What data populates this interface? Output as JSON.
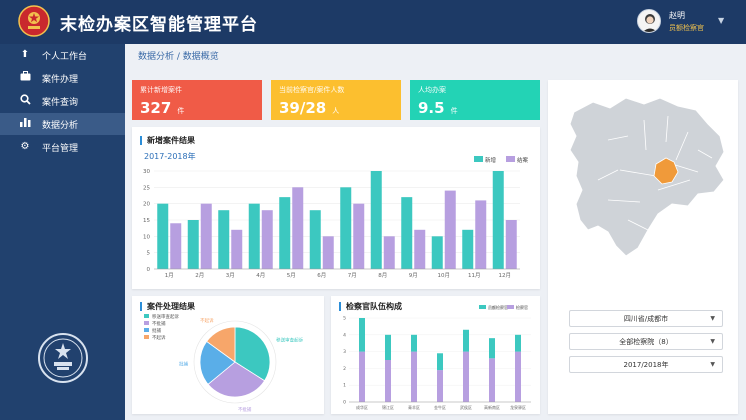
{
  "app": {
    "title": "末检办案区智能管理平台"
  },
  "user": {
    "name": "赵明",
    "role": "员额检察官"
  },
  "sidebar": {
    "items": [
      {
        "label": "个人工作台",
        "icon": "upload-icon"
      },
      {
        "label": "案件办理",
        "icon": "briefcase-icon"
      },
      {
        "label": "案件查询",
        "icon": "search-icon"
      },
      {
        "label": "数据分析",
        "icon": "bar-chart-icon",
        "active": true
      },
      {
        "label": "平台管理",
        "icon": "gear-icon"
      }
    ]
  },
  "breadcrumb": "数据分析 / 数据概览",
  "kpis": [
    {
      "label": "累计新增案件",
      "value": "327",
      "unit": "件",
      "color": "#f05b47"
    },
    {
      "label": "当前检察官/案件人数",
      "value": "39/28",
      "unit": "人",
      "color": "#fcbf2f"
    },
    {
      "label": "人均办案",
      "value": "9.5",
      "unit": "件",
      "color": "#23d3b5"
    }
  ],
  "panels": {
    "new_cases": "新增案件结果",
    "case_result": "案件处理结果",
    "team": "检察官队伍构成"
  },
  "selects": [
    {
      "value": "四川省/成都市"
    },
    {
      "value": "全部检察院（8）"
    },
    {
      "value": "2017/2018年"
    }
  ],
  "colors": {
    "teal": "#3cc8c0",
    "purple": "#b79fe0",
    "blue": "#5aaee8",
    "orange": "#f7a66a",
    "map_highlight": "#f09a3a"
  },
  "chart_data": [
    {
      "type": "bar",
      "title": "新增案件结果",
      "subtitle": "2017-2018年",
      "categories": [
        "1月",
        "2月",
        "3月",
        "4月",
        "5月",
        "6月",
        "7月",
        "8月",
        "9月",
        "10月",
        "11月",
        "12月"
      ],
      "series": [
        {
          "name": "新增",
          "values": [
            20,
            15,
            18,
            20,
            22,
            18,
            25,
            30,
            22,
            10,
            12,
            30
          ]
        },
        {
          "name": "结案",
          "values": [
            14,
            20,
            12,
            18,
            25,
            10,
            20,
            10,
            12,
            24,
            21,
            15
          ]
        }
      ],
      "ylim": [
        0,
        30
      ],
      "yticks": [
        0,
        5,
        10,
        15,
        20,
        25,
        30
      ],
      "grid": true,
      "legend": "top-right"
    },
    {
      "type": "pie",
      "title": "案件处理结果",
      "slices": [
        {
          "name": "移送审查起诉",
          "value": 34
        },
        {
          "name": "不批捕",
          "value": 30
        },
        {
          "name": "批捕",
          "value": 21
        },
        {
          "name": "不起诉",
          "value": 15
        }
      ],
      "legend": "top-left"
    },
    {
      "type": "bar",
      "title": "检察官队伍构成",
      "stacked": true,
      "categories": [
        "成华区",
        "锦江区",
        "青羊区",
        "金牛区",
        "武侯区",
        "高新南区",
        "龙泉驿区"
      ],
      "series": [
        {
          "name": "员额检察官",
          "values": [
            2,
            1.5,
            1,
            1,
            1.3,
            1.2,
            1
          ]
        },
        {
          "name": "检察官",
          "values": [
            3,
            2.5,
            3,
            1.9,
            3,
            2.6,
            3
          ]
        }
      ],
      "ylim": [
        0,
        5
      ],
      "yticks": [
        0,
        1,
        2,
        3,
        4,
        5
      ],
      "legend": "top-right"
    }
  ]
}
